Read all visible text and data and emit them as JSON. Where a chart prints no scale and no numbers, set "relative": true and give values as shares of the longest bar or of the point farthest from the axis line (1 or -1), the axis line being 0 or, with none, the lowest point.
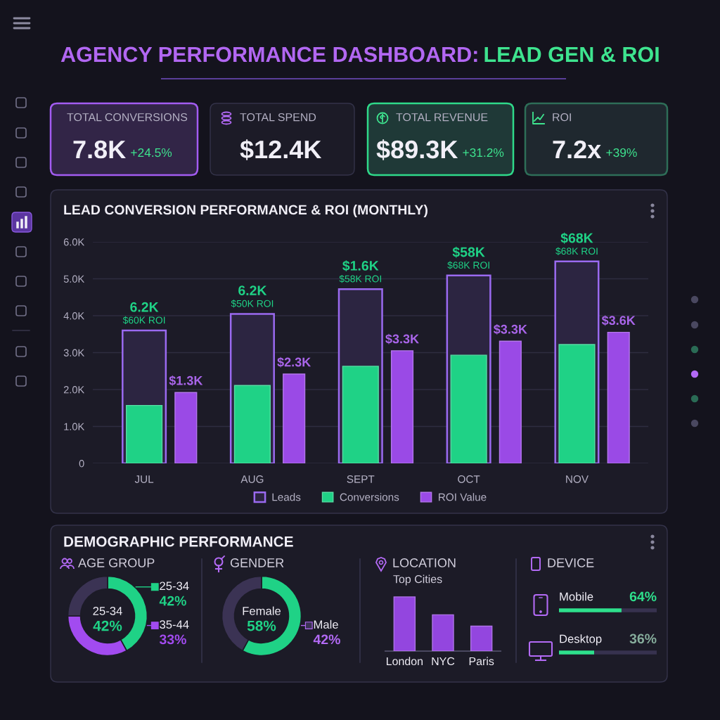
{
  "chart_data": [
    {
      "type": "other",
      "annotations": [
        "AGENCY PERFORMANCE DASHBOARD:",
        "LEAD GEN & ROI"
      ],
      "colors": [
        "#b267f2",
        "#3ee48f"
      ]
    },
    {
      "type": "other",
      "title": "TOTAL CONVERSIONS",
      "annotations": [
        "7.8K",
        "+24.5%"
      ],
      "color": "#a35cf2"
    },
    {
      "type": "other",
      "title": "TOTAL SPEND",
      "annotations": [
        "$12.4K"
      ]
    },
    {
      "type": "other",
      "title": "TOTAL REVENUE",
      "annotations": [
        "$89.3K",
        "+31.2%"
      ],
      "color": "#2fd98a"
    },
    {
      "type": "other",
      "title": "ROI",
      "annotations": [
        "7.2x",
        "+39%"
      ],
      "color": "#2e6e58"
    },
    {
      "type": "bar",
      "title": "LEAD CONVERSION PERFORMANCE & ROI (MONTHLY)",
      "categories": [
        "JUL",
        "AUG",
        "SEPT",
        "OCT",
        "NOV"
      ],
      "series": [
        {
          "name": "Leads",
          "color": "#9a6af0",
          "values": [
            3600,
            4050,
            4720,
            5090,
            5470
          ]
        },
        {
          "name": "Conversions",
          "color": "#1fd286",
          "values": [
            1570,
            2110,
            2630,
            2930,
            3220
          ]
        },
        {
          "name": "ROI Value",
          "color": "#9a4ae6",
          "values": [
            1920,
            2420,
            3050,
            3310,
            3550
          ]
        }
      ],
      "ylim": [
        0,
        6000
      ],
      "yticks": [
        0,
        {
          "value": 1000,
          "label": "1.0K"
        },
        {
          "value": 2000,
          "label": "2.0K"
        },
        {
          "value": 3000,
          "label": "3.0K"
        },
        {
          "value": 4000,
          "label": "4.0K"
        },
        {
          "value": 5000,
          "label": "5.0K"
        },
        {
          "value": 6000,
          "label": "6.0K"
        }
      ],
      "grid": "y",
      "legend": "bottom",
      "annotations": [
        {
          "text": "6.2K",
          "x": "JUL",
          "y": 3600
        },
        {
          "text": "$60K ROI",
          "x": "JUL",
          "y": 3600
        },
        {
          "text": "6.2K",
          "x": "AUG",
          "y": 4050
        },
        {
          "text": "$50K ROI",
          "x": "AUG",
          "y": 4050
        },
        {
          "text": "$1.6K",
          "x": "SEPT",
          "y": 4720
        },
        {
          "text": "$58K ROI",
          "x": "SEPT",
          "y": 4720
        },
        {
          "text": "$58K",
          "x": "OCT",
          "y": 5090
        },
        {
          "text": "$68K ROI",
          "x": "OCT",
          "y": 5090
        },
        {
          "text": "$68K",
          "x": "NOV",
          "y": 5470
        },
        {
          "text": "$68K ROI",
          "x": "NOV",
          "y": 5470
        },
        "$1.3K",
        "$2.3K",
        "$3.3K",
        "$3.3K",
        "$3.6K"
      ]
    },
    {
      "type": "other",
      "title": "DEMOGRAPHIC PERFORMANCE"
    },
    {
      "type": "donut",
      "title": "AGE GROUP",
      "categories": [
        "25-34",
        "35-44",
        null
      ],
      "values": [
        42,
        33,
        25
      ],
      "colors": [
        "#1fd286",
        "#a24bf0",
        "#3b3354"
      ],
      "value_labels": [
        "42%",
        "33%",
        null
      ],
      "annotations": [
        "25-34",
        "42%"
      ],
      "legend": "right"
    },
    {
      "type": "donut",
      "title": "GENDER",
      "categories": [
        "Female",
        "Male"
      ],
      "values": [
        58,
        42
      ],
      "colors": [
        "#1fd286",
        "#3b3354"
      ],
      "value_labels": [
        "58%",
        "42%"
      ],
      "legend": "right"
    },
    {
      "type": "bar",
      "title": "LOCATION",
      "subtitle": "Top Cities",
      "categories": [
        "London",
        "NYC",
        "Paris"
      ],
      "values": [
        1,
        0.67,
        0.46
      ],
      "color": "#9346df",
      "relative": true
    },
    {
      "type": "bar",
      "title": "DEVICE",
      "orientation": "horizontal",
      "stacked": true,
      "categories": [
        "Mobile",
        "Desktop"
      ],
      "series": [
        {
          "color": "#2ee08c",
          "values": [
            64,
            36
          ],
          "value_labels": [
            "64%",
            "36%"
          ]
        },
        {
          "color": "#37324f",
          "values": [
            36,
            64
          ]
        }
      ],
      "xlim": [
        0,
        100
      ]
    }
  ]
}
